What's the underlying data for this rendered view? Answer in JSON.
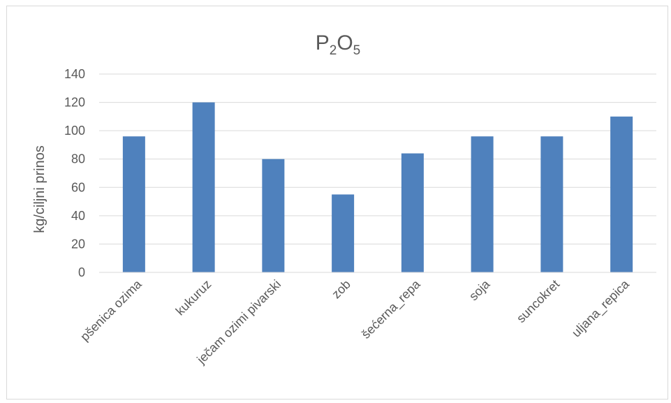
{
  "chart_data": {
    "type": "bar",
    "title": "P2O5",
    "title_parts": {
      "base1": "P",
      "sub1": "2",
      "base2": "O",
      "sub2": "5"
    },
    "xlabel": "",
    "ylabel": "kg/ciljni prinos",
    "categories": [
      "pšenica ozima",
      "kukuruz",
      "ječam ozimi pivarski",
      "zob",
      "šećerna_repa",
      "soja",
      "suncokret",
      "uljana_repica"
    ],
    "values": [
      96,
      120,
      80,
      55,
      84,
      96,
      96,
      110
    ],
    "ylim": [
      0,
      140
    ],
    "yticks": [
      0,
      20,
      40,
      60,
      80,
      100,
      120,
      140
    ],
    "grid": true,
    "legend": "none",
    "bar_color": "#4f81bd",
    "grid_color": "#d9d9d9",
    "text_color": "#595959"
  }
}
